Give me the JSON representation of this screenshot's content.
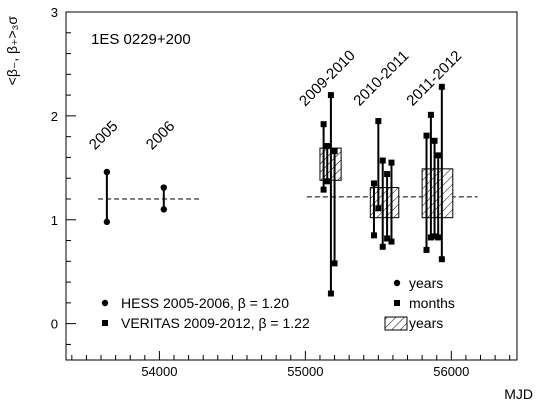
{
  "chart_data": {
    "type": "scatter",
    "title": "1ES 0229+200",
    "xlabel": "MJD",
    "ylabel": "<β₋, β₊>₃σ",
    "xlim": [
      53360,
      56450
    ],
    "ylim": [
      -0.35,
      3.0
    ],
    "x_ticks": [
      54000,
      55000,
      56000
    ],
    "y_ticks": [
      0,
      1,
      2,
      3
    ],
    "grid": false,
    "legend_left": [
      {
        "marker": "circle",
        "label": "HESS 2005-2006, β = 1.20"
      },
      {
        "marker": "square",
        "label": "VERITAS 2009-2012, β = 1.22"
      }
    ],
    "legend_right": [
      {
        "marker": "circle",
        "label": "years"
      },
      {
        "marker": "square",
        "label": "months"
      },
      {
        "marker": "hatched-box",
        "label": "years"
      }
    ],
    "hess_mean": {
      "value": 1.2,
      "x_range": [
        53580,
        54290
      ]
    },
    "veritas_mean": {
      "value": 1.22,
      "x_range": [
        55010,
        56180
      ]
    },
    "hess_years": [
      {
        "label": "2005",
        "x": 53640,
        "low": 0.98,
        "high": 1.46
      },
      {
        "label": "2006",
        "x": 54030,
        "low": 1.1,
        "high": 1.31
      }
    ],
    "veritas_years": [
      {
        "label": "2009-2010",
        "x_range": [
          55100,
          55245
        ],
        "low": 1.38,
        "high": 1.69
      },
      {
        "label": "2010-2011",
        "x_range": [
          55445,
          55640
        ],
        "low": 1.02,
        "high": 1.31
      },
      {
        "label": "2011-2012",
        "x_range": [
          55800,
          56010
        ],
        "low": 1.02,
        "high": 1.49
      }
    ],
    "veritas_months": [
      {
        "x": 55125,
        "low": 1.29,
        "high": 1.92
      },
      {
        "x": 55150,
        "low": 1.37,
        "high": 1.71
      },
      {
        "x": 55175,
        "low": 0.29,
        "high": 2.2
      },
      {
        "x": 55200,
        "low": 0.58,
        "high": 1.66
      },
      {
        "x": 55470,
        "low": 0.85,
        "high": 1.35
      },
      {
        "x": 55500,
        "low": 1.11,
        "high": 1.95
      },
      {
        "x": 55530,
        "low": 0.74,
        "high": 1.57
      },
      {
        "x": 55560,
        "low": 0.82,
        "high": 1.44
      },
      {
        "x": 55590,
        "low": 0.79,
        "high": 1.55
      },
      {
        "x": 55830,
        "low": 0.71,
        "high": 1.81
      },
      {
        "x": 55860,
        "low": 0.83,
        "high": 2.01
      },
      {
        "x": 55885,
        "low": 0.84,
        "high": 1.76
      },
      {
        "x": 55910,
        "low": 0.83,
        "high": 1.62
      },
      {
        "x": 55935,
        "low": 0.62,
        "high": 2.28
      }
    ]
  }
}
